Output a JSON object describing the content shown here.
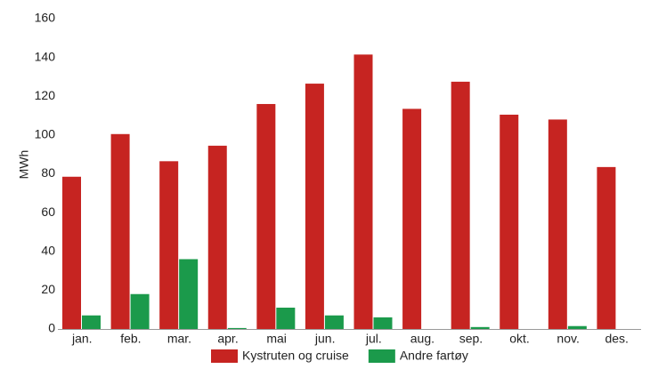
{
  "chart_data": {
    "type": "bar",
    "y_label": "MWh",
    "categories": [
      "jan.",
      "feb.",
      "mar.",
      "apr.",
      "mai",
      "jun.",
      "jul.",
      "aug.",
      "sep.",
      "okt.",
      "nov.",
      "des."
    ],
    "series": [
      {
        "name": "Kystruten og cruise",
        "color": "#c62421",
        "values": [
          78.5,
          100.5,
          86.5,
          94.5,
          116,
          126.5,
          141.5,
          113.5,
          127.5,
          110.5,
          108,
          83.5
        ]
      },
      {
        "name": "Andre fartøy",
        "color": "#1b9a4b",
        "values": [
          7,
          18,
          36,
          0.5,
          11,
          7,
          6,
          0,
          1,
          0,
          1.5,
          0
        ]
      }
    ],
    "ylim": [
      0,
      160
    ],
    "yticks": [
      0,
      20,
      40,
      60,
      80,
      100,
      120,
      140,
      160
    ],
    "grid": false
  }
}
